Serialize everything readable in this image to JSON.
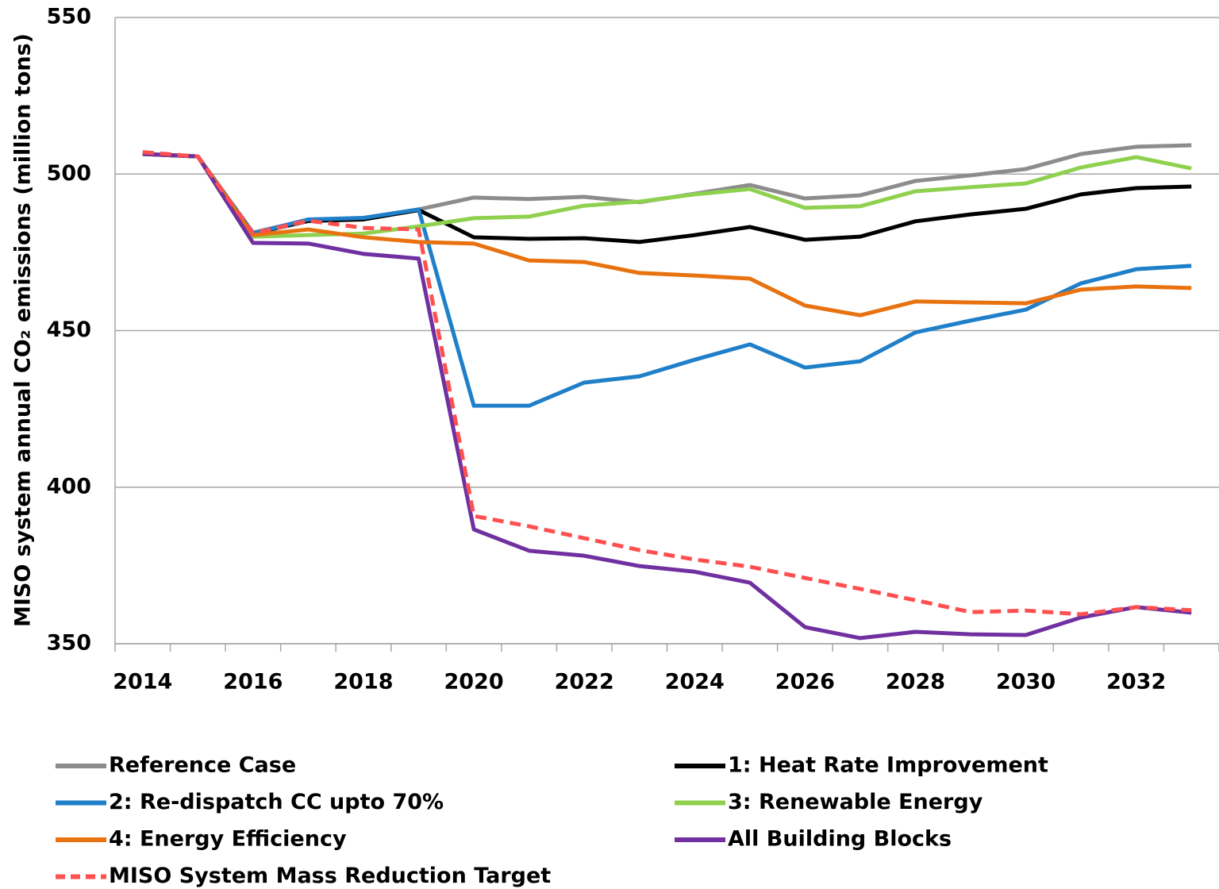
{
  "chart_data": {
    "type": "line",
    "y_label": "MISO system annual CO₂ emissions (million tons)",
    "categories": [
      "2014",
      null,
      "2016",
      null,
      "2018",
      null,
      "2020",
      null,
      "2022",
      null,
      "2024",
      null,
      "2026",
      null,
      "2028",
      null,
      "2030",
      null,
      "2032",
      null
    ],
    "ylim": [
      350,
      550
    ],
    "yticks": [
      350,
      400,
      450,
      500,
      550
    ],
    "grid": true,
    "legend": "bottom",
    "series": [
      {
        "name": "Reference Case",
        "color": "#8c8c8c",
        "values": [
          506.4,
          505.6,
          481.3,
          485.4,
          485.9,
          488.7,
          492.5,
          492,
          492.7,
          491,
          493.7,
          496.5,
          492.2,
          493.2,
          497.8,
          499.6,
          501.6,
          506.4,
          508.7,
          509.2
        ]
      },
      {
        "name": "1: Heat Rate Improvement",
        "color": "#000000",
        "values": [
          506.4,
          505.6,
          481,
          485,
          485.5,
          488.5,
          479.8,
          479.3,
          479.5,
          478.3,
          480.5,
          483.1,
          479,
          480,
          484.9,
          487.1,
          488.9,
          493.5,
          495.5,
          496
        ]
      },
      {
        "name": "2: Re-dispatch CC upto 70%",
        "color": "#1f7fc8",
        "values": [
          506.4,
          505.6,
          481,
          485.5,
          486,
          488.7,
          426,
          426,
          433.4,
          435.4,
          440.7,
          445.6,
          438.2,
          440.2,
          449.4,
          453.2,
          456.7,
          465.1,
          469.6,
          470.7
        ]
      },
      {
        "name": "3: Renewable Energy",
        "color": "#8fd14f",
        "values": [
          506.4,
          505.6,
          480,
          480.5,
          481,
          483.3,
          485.9,
          486.4,
          489.9,
          491.2,
          493.5,
          495.2,
          489.2,
          489.7,
          494.5,
          495.8,
          497,
          502.1,
          505.4,
          501.8
        ]
      },
      {
        "name": "4: Energy Efficiency",
        "color": "#e8720f",
        "values": [
          506.4,
          505.6,
          480.5,
          482.3,
          479.8,
          478.3,
          477.8,
          472.4,
          471.9,
          468.4,
          467.6,
          466.6,
          458,
          454.9,
          459.3,
          459,
          458.7,
          463.1,
          464.1,
          463.6
        ]
      },
      {
        "name": "All Building Blocks",
        "color": "#7030a0",
        "values": [
          506.4,
          505.6,
          478,
          477.8,
          474.5,
          473,
          386.5,
          379.7,
          378.1,
          374.8,
          373,
          369.5,
          355.3,
          351.8,
          353.8,
          353,
          352.8,
          358.4,
          361.7,
          359.9
        ]
      },
      {
        "name": "MISO System Mass Reduction Target",
        "color": "#ff5050",
        "dashed": true,
        "values": [
          507,
          505.6,
          481,
          485.1,
          482.8,
          482.3,
          390.8,
          387.5,
          383.7,
          379.9,
          376.9,
          374.6,
          371,
          367.5,
          363.9,
          360.1,
          360.6,
          359.4,
          361.7,
          360.7
        ]
      }
    ]
  }
}
